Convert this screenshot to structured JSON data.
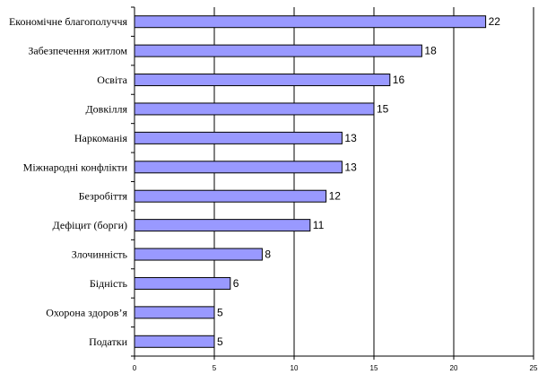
{
  "chart_data": {
    "type": "bar",
    "orientation": "horizontal",
    "categories": [
      "Економічне благополуччя",
      "Забезпечення житлом",
      "Освіта",
      "Довкілля",
      "Наркоманія",
      "Міжнародні конфлікти",
      "Безробіття",
      "Дефіцит (борги)",
      "Злочинність",
      "Бідність",
      "Охорона здоров’я",
      "Податки"
    ],
    "values": [
      22,
      18,
      16,
      15,
      13,
      13,
      12,
      11,
      8,
      6,
      5,
      5
    ],
    "xlim": [
      0,
      25
    ],
    "xticks": [
      0,
      5,
      10,
      15,
      20,
      25
    ],
    "grid": "vertical",
    "legend": "none",
    "colors": {
      "bar": "#9999ff",
      "bar_stroke": "#000000",
      "grid": "#000000"
    }
  }
}
